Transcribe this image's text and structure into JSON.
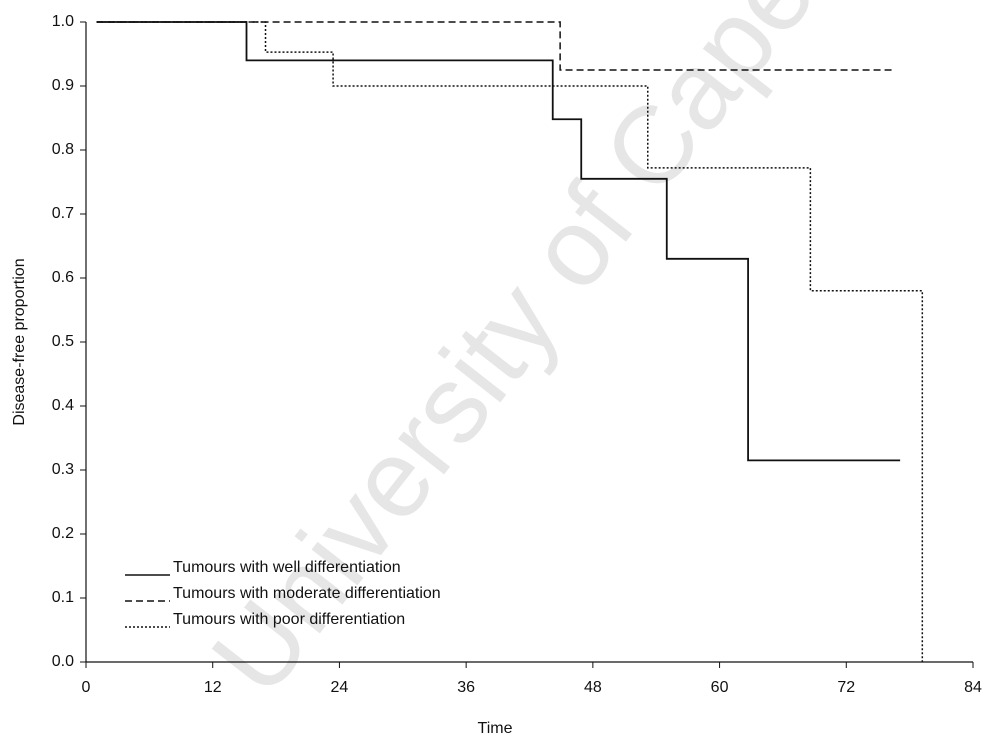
{
  "chart_data": {
    "type": "step",
    "watermark": "University of Cape",
    "x_label": "Time",
    "y_label": "Disease-free proportion",
    "xlim": [
      0,
      84
    ],
    "xticks": [
      0,
      12,
      24,
      36,
      48,
      60,
      72,
      84
    ],
    "ylim": [
      0,
      1
    ],
    "yticks": [
      {
        "value": 0,
        "label": "0.0"
      },
      0.1,
      0.2,
      0.3,
      0.4,
      0.5,
      0.6,
      0.7,
      0.8,
      0.9,
      {
        "value": 1,
        "label": "1.0"
      }
    ],
    "grid": false,
    "legend": "lower left",
    "series": [
      {
        "name": "Tumours with well differentiation",
        "color": "#111111",
        "dash": "solid",
        "x": [
          1,
          15.2,
          44.2,
          46.9,
          55,
          62.7,
          77.1
        ],
        "values": [
          1.0,
          0.94,
          0.848,
          0.755,
          0.63,
          0.315,
          0.315
        ]
      },
      {
        "name": "Tumours with moderate differentiation",
        "color": "#111111",
        "dash": "dashed",
        "x": [
          1,
          44.9,
          76.6
        ],
        "values": [
          1.0,
          0.925,
          0.925
        ]
      },
      {
        "name": "Tumours with poor differentiation",
        "color": "#111111",
        "dash": "dotted",
        "x": [
          1,
          17,
          23.4,
          53.2,
          68.6,
          79.2
        ],
        "values": [
          1.0,
          0.953,
          0.9,
          0.772,
          0.58,
          0.0
        ]
      }
    ]
  }
}
